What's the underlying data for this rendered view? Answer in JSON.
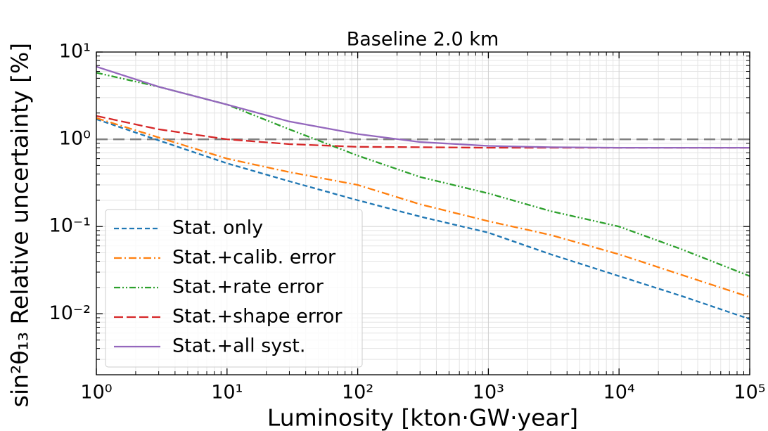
{
  "chart_data": {
    "type": "line",
    "title": "Baseline 2.0 km",
    "xlabel": "Luminosity [kton·GW·year]",
    "ylabel": "sin²θ₁₃ Relative uncertainty [%]",
    "x": [
      1,
      3,
      10,
      30,
      100,
      300,
      1000,
      3000,
      10000,
      30000,
      100000
    ],
    "series": [
      {
        "name": "Stat. only",
        "color": "#1f77b4",
        "linestyle": "dashed",
        "values": [
          1.7,
          0.97,
          0.53,
          0.33,
          0.2,
          0.13,
          0.085,
          0.048,
          0.027,
          0.016,
          0.0087
        ]
      },
      {
        "name": "Stat.+calib. error",
        "color": "#ff7f0e",
        "linestyle": "dashdot",
        "values": [
          1.75,
          1.05,
          0.6,
          0.42,
          0.3,
          0.18,
          0.115,
          0.08,
          0.048,
          0.028,
          0.0155
        ]
      },
      {
        "name": "Stat.+rate error",
        "color": "#2ca02c",
        "linestyle": "dashdotdot",
        "values": [
          5.8,
          4.0,
          2.5,
          1.3,
          0.65,
          0.37,
          0.24,
          0.15,
          0.1,
          0.055,
          0.027
        ]
      },
      {
        "name": "Stat.+shape error",
        "color": "#d62728",
        "linestyle": "longdash",
        "values": [
          1.85,
          1.3,
          1.0,
          0.88,
          0.82,
          0.81,
          0.8,
          0.8,
          0.8,
          0.8,
          0.8
        ]
      },
      {
        "name": "Stat.+all syst.",
        "color": "#9467bd",
        "linestyle": "solid",
        "values": [
          6.8,
          4.0,
          2.5,
          1.6,
          1.15,
          0.93,
          0.84,
          0.81,
          0.8,
          0.8,
          0.8
        ]
      }
    ],
    "hline": 1,
    "hline_color": "#808080",
    "xscale": "log",
    "yscale": "log",
    "xlim": [
      1,
      100000
    ],
    "ylim": [
      0.002,
      10
    ],
    "xticks": [
      {
        "value": 1,
        "label": "10⁰"
      },
      {
        "value": 10,
        "label": "10¹"
      },
      {
        "value": 100,
        "label": "10²"
      },
      {
        "value": 1000,
        "label": "10³"
      },
      {
        "value": 10000,
        "label": "10⁴"
      },
      {
        "value": 100000,
        "label": "10⁵"
      }
    ],
    "yticks": [
      {
        "value": 0.01,
        "label": "10⁻²"
      },
      {
        "value": 0.1,
        "label": "10⁻¹"
      },
      {
        "value": 1,
        "label": "10⁰"
      },
      {
        "value": 10,
        "label": "10¹"
      }
    ],
    "grid": true,
    "legend": "lower left"
  }
}
